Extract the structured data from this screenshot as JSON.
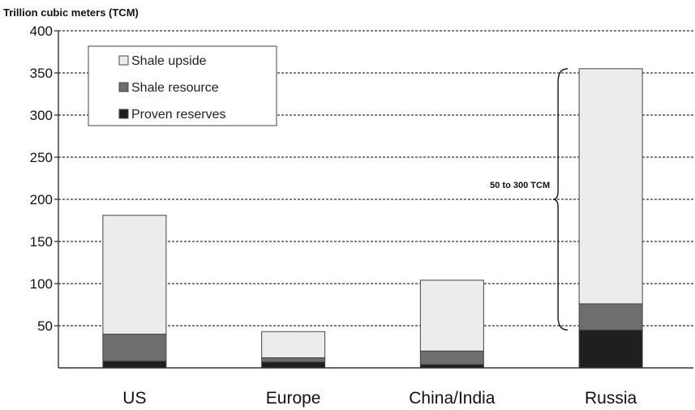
{
  "chart_data": {
    "type": "bar",
    "stacked": true,
    "ylabel": "Trillion cubic meters (TCM)",
    "ylim": [
      0,
      400
    ],
    "yticks": [
      "400",
      "350",
      "300",
      "250",
      "200",
      "150",
      "100",
      "50"
    ],
    "categories": [
      "US",
      "Europe",
      "China/India",
      "Russia"
    ],
    "series": [
      {
        "name": "Proven reserves",
        "color": "#1f1f1f",
        "values": [
          8,
          7,
          4,
          45
        ]
      },
      {
        "name": "Shale resource",
        "color": "#6e6e6e",
        "values": [
          32,
          5,
          16,
          31
        ]
      },
      {
        "name": "Shale upside",
        "color": "#ececec",
        "values": [
          141,
          31,
          84,
          279
        ]
      }
    ],
    "legend": {
      "placement": "top-left",
      "order": [
        "Shale upside",
        "Shale resource",
        "Proven reserves"
      ]
    },
    "annotation": {
      "text": "50 to 300 TCM",
      "applies_to": "Russia",
      "range": [
        45,
        355
      ]
    },
    "grid": "horizontal dashed"
  }
}
